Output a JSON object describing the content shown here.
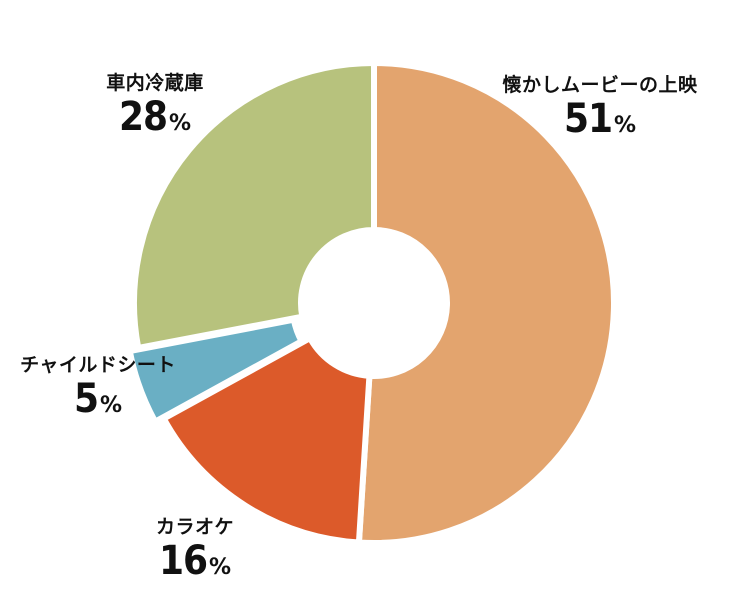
{
  "chart_data": {
    "type": "pie",
    "donut": true,
    "title": "",
    "categories": [
      "懐かしムービーの上映",
      "カラオケ",
      "チャイルドシート",
      "車内冷蔵庫"
    ],
    "values": [
      51,
      16,
      5,
      28
    ],
    "value_suffix": "%",
    "colors": [
      "#E3A46E",
      "#DC5A2A",
      "#6AAFC4",
      "#B7C27D"
    ],
    "start": "top, clockwise",
    "exploded_slice": "チャイルドシート",
    "legend": "none (labels beside slices)"
  }
}
